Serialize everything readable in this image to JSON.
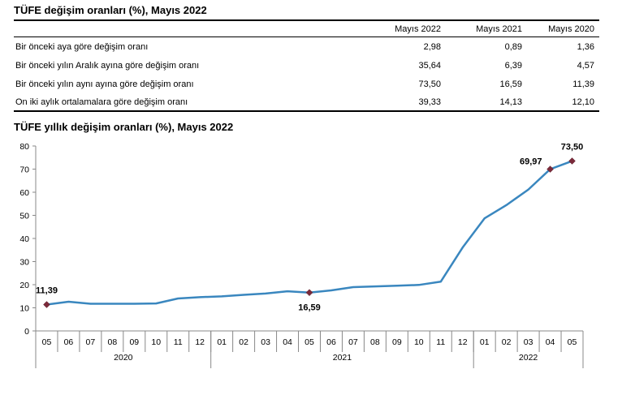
{
  "table": {
    "title": "TÜFE değişim oranları (%), Mayıs 2022",
    "headers": [
      "",
      "Mayıs 2022",
      "Mayıs 2021",
      "Mayıs 2020"
    ],
    "rows": [
      {
        "label": "Bir önceki aya göre değişim oranı",
        "values": [
          "2,98",
          "0,89",
          "1,36"
        ]
      },
      {
        "label": "Bir önceki yılın Aralık ayına göre değişim oranı",
        "values": [
          "35,64",
          "6,39",
          "4,57"
        ]
      },
      {
        "label": "Bir önceki yılın aynı ayına göre değişim oranı",
        "values": [
          "73,50",
          "16,59",
          "11,39"
        ]
      },
      {
        "label": "On iki aylık ortalamalara göre değişim oranı",
        "values": [
          "39,33",
          "14,13",
          "12,10"
        ]
      }
    ]
  },
  "chart_data": {
    "type": "line",
    "title": "TÜFE yıllık değişim oranları (%), Mayıs 2022",
    "ylim": [
      0,
      80
    ],
    "yticks": [
      0,
      10,
      20,
      30,
      40,
      50,
      60,
      70,
      80
    ],
    "x": [
      "05",
      "06",
      "07",
      "08",
      "09",
      "10",
      "11",
      "12",
      "01",
      "02",
      "03",
      "04",
      "05",
      "06",
      "07",
      "08",
      "09",
      "10",
      "11",
      "12",
      "01",
      "02",
      "03",
      "04",
      "05"
    ],
    "years": [
      {
        "label": "2020",
        "span": 8
      },
      {
        "label": "2021",
        "span": 12
      },
      {
        "label": "2022",
        "span": 5
      }
    ],
    "series": [
      {
        "color": "#3a87bf",
        "values": [
          11.39,
          12.62,
          11.76,
          11.77,
          11.75,
          11.89,
          14.03,
          14.6,
          14.97,
          15.61,
          16.19,
          17.14,
          16.59,
          17.53,
          18.95,
          19.25,
          19.58,
          19.89,
          21.31,
          36.08,
          48.69,
          54.44,
          61.14,
          69.97,
          73.5
        ]
      }
    ],
    "annotations": [
      {
        "index": 0,
        "label": "11,39",
        "position": "above"
      },
      {
        "index": 12,
        "label": "16,59",
        "position": "below"
      },
      {
        "index": 23,
        "label": "69,97",
        "position": "left"
      },
      {
        "index": 24,
        "label": "73,50",
        "position": "above"
      }
    ],
    "marker_color": "#7b2a3a",
    "grid": false,
    "legend": "none"
  }
}
